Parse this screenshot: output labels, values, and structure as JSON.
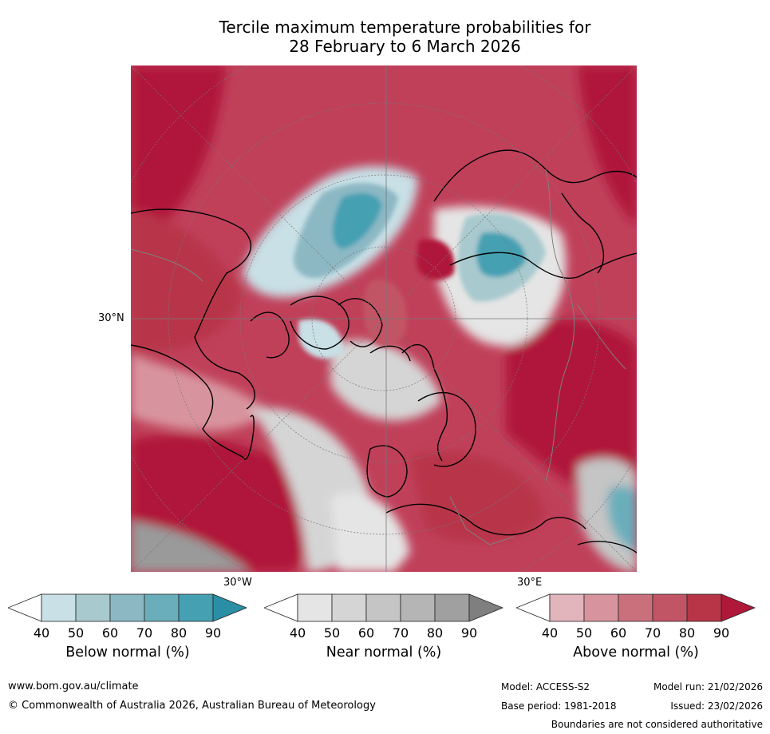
{
  "title": {
    "line1": "Tercile maximum temperature probabilities for",
    "line2": "28 February to 6 March 2026"
  },
  "map": {
    "lat_label": "30°N",
    "lon_labels": {
      "west": "30°W",
      "east": "30°E"
    }
  },
  "colorbars": [
    {
      "id": "below",
      "label": "Below normal (%)",
      "ticks": [
        "40",
        "50",
        "60",
        "70",
        "80",
        "90"
      ],
      "colors": [
        "#ffffff",
        "#c8e0e6",
        "#a8c9ce",
        "#8cb8c4",
        "#6aaebc",
        "#45a0b2",
        "#2a8fa5"
      ]
    },
    {
      "id": "near",
      "label": "Near normal (%)",
      "ticks": [
        "40",
        "50",
        "60",
        "70",
        "80",
        "90"
      ],
      "colors": [
        "#ffffff",
        "#e5e5e5",
        "#d5d5d5",
        "#c5c5c5",
        "#b5b5b5",
        "#a0a0a0",
        "#7f7f7f"
      ]
    },
    {
      "id": "above",
      "label": "Above normal (%)",
      "ticks": [
        "40",
        "50",
        "60",
        "70",
        "80",
        "90"
      ],
      "colors": [
        "#ffffff",
        "#e2b5bd",
        "#d8949e",
        "#ca707d",
        "#c25565",
        "#b83548",
        "#b0183a"
      ]
    }
  ],
  "footer": {
    "website": "www.bom.gov.au/climate",
    "copyright": "© Commonwealth of Australia 2026, Australian Bureau of Meteorology",
    "model": "Model: ACCESS-S2",
    "base_period": "Base period: 1981-2018",
    "model_run": "Model run: 21/02/2026",
    "issued": "Issued: 23/02/2026",
    "disclaimer": "Boundaries are not considered authoritative"
  }
}
